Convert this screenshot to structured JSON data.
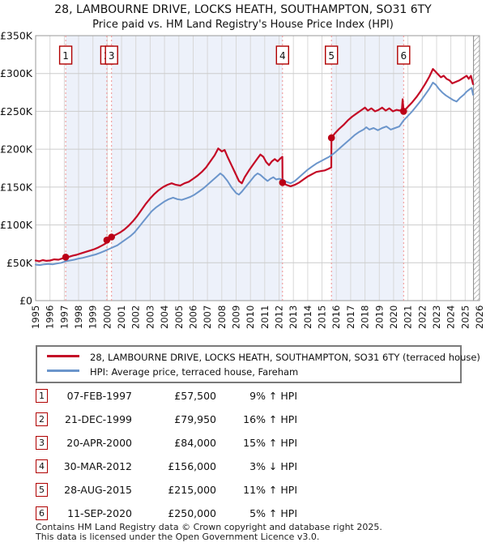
{
  "header": {
    "title": "28, LAMBOURNE DRIVE, LOCKS HEATH, SOUTHAMPTON, SO31 6TY",
    "subtitle": "Price paid vs. HM Land Registry's House Price Index (HPI)"
  },
  "chart_data": {
    "type": "line",
    "title": "Price paid vs. HPI",
    "x_axis": {
      "tick_years": [
        1995,
        1996,
        1997,
        1998,
        1999,
        2000,
        2001,
        2002,
        2003,
        2004,
        2005,
        2006,
        2007,
        2008,
        2009,
        2010,
        2011,
        2012,
        2013,
        2014,
        2015,
        2016,
        2017,
        2018,
        2019,
        2020,
        2021,
        2022,
        2023,
        2024,
        2025,
        2026
      ],
      "range": [
        1995,
        2026
      ]
    },
    "y_axis": {
      "range_k": [
        0,
        350
      ],
      "ticks": [
        {
          "value": 0,
          "label": "£0"
        },
        {
          "value": 50,
          "label": "£50K"
        },
        {
          "value": 100,
          "label": "£100K"
        },
        {
          "value": 150,
          "label": "£150K"
        },
        {
          "value": 200,
          "label": "£200K"
        },
        {
          "value": 250,
          "label": "£250K"
        },
        {
          "value": 300,
          "label": "£300K"
        },
        {
          "value": 350,
          "label": "£350K"
        }
      ]
    },
    "hatch_start_year": 2025.58,
    "ownership_bands": [
      [
        1997.1,
        1999.97
      ],
      [
        2000.3,
        2012.24
      ],
      [
        2015.66,
        2020.7
      ]
    ],
    "sale_markers": [
      {
        "n": "1",
        "year": 1997.1,
        "price_k": 57.5
      },
      {
        "n": "2",
        "year": 1999.97,
        "price_k": 79.95
      },
      {
        "n": "3",
        "year": 2000.3,
        "price_k": 84
      },
      {
        "n": "4",
        "year": 2012.24,
        "price_k": 156
      },
      {
        "n": "5",
        "year": 2015.66,
        "price_k": 215
      },
      {
        "n": "6",
        "year": 2020.7,
        "price_k": 250
      }
    ],
    "colors": {
      "price_line": "#c40a26",
      "hpi_line": "#6b95cb",
      "dot": "#bb0016",
      "box_border": "#b00000",
      "band": "#edf1fa",
      "grid_v": "#d8d8d8",
      "grid_h": "#cccccc",
      "frame": "#999999",
      "sale_dash": "#ef8f8f",
      "hatch": "#bbbbbb"
    },
    "series": [
      {
        "id": "price-paid",
        "name": "28, LAMBOURNE DRIVE (terraced house)",
        "color": "#c40a26",
        "width": 2.2,
        "points": [
          [
            1995.0,
            53
          ],
          [
            1995.25,
            52
          ],
          [
            1995.5,
            53.5
          ],
          [
            1995.75,
            52.5
          ],
          [
            1996.0,
            53
          ],
          [
            1996.3,
            54.5
          ],
          [
            1996.6,
            54
          ],
          [
            1996.9,
            56
          ],
          [
            1997.1,
            57.5
          ],
          [
            1997.35,
            58
          ],
          [
            1997.6,
            59.5
          ],
          [
            1997.85,
            60.5
          ],
          [
            1998.1,
            62
          ],
          [
            1998.35,
            63.5
          ],
          [
            1998.6,
            65
          ],
          [
            1998.85,
            66.5
          ],
          [
            1999.1,
            68
          ],
          [
            1999.35,
            70
          ],
          [
            1999.6,
            72.5
          ],
          [
            1999.85,
            75
          ],
          [
            1999.96,
            76.5
          ],
          [
            1999.97,
            80
          ],
          [
            2000.29,
            81.5
          ],
          [
            2000.3,
            84
          ],
          [
            2000.6,
            87
          ],
          [
            2000.9,
            90
          ],
          [
            2001.2,
            94
          ],
          [
            2001.5,
            99
          ],
          [
            2001.8,
            105
          ],
          [
            2002.1,
            112
          ],
          [
            2002.4,
            120
          ],
          [
            2002.7,
            128
          ],
          [
            2003.0,
            135
          ],
          [
            2003.3,
            141
          ],
          [
            2003.6,
            146
          ],
          [
            2003.9,
            150
          ],
          [
            2004.2,
            153
          ],
          [
            2004.5,
            155
          ],
          [
            2004.8,
            153
          ],
          [
            2005.1,
            152
          ],
          [
            2005.4,
            155
          ],
          [
            2005.7,
            157
          ],
          [
            2006.0,
            161
          ],
          [
            2006.3,
            165
          ],
          [
            2006.6,
            170
          ],
          [
            2006.9,
            176
          ],
          [
            2007.2,
            184
          ],
          [
            2007.5,
            192
          ],
          [
            2007.75,
            201
          ],
          [
            2008.0,
            197
          ],
          [
            2008.2,
            199
          ],
          [
            2008.4,
            190
          ],
          [
            2008.7,
            178
          ],
          [
            2009.0,
            166
          ],
          [
            2009.2,
            158
          ],
          [
            2009.4,
            155
          ],
          [
            2009.6,
            163
          ],
          [
            2009.9,
            172
          ],
          [
            2010.2,
            180
          ],
          [
            2010.5,
            188
          ],
          [
            2010.7,
            193
          ],
          [
            2010.9,
            190
          ],
          [
            2011.1,
            183
          ],
          [
            2011.3,
            179
          ],
          [
            2011.5,
            184
          ],
          [
            2011.7,
            187
          ],
          [
            2011.9,
            184
          ],
          [
            2012.1,
            188
          ],
          [
            2012.23,
            190
          ],
          [
            2012.24,
            156
          ],
          [
            2012.5,
            153
          ],
          [
            2012.8,
            151
          ],
          [
            2013.1,
            153
          ],
          [
            2013.4,
            156
          ],
          [
            2013.7,
            160
          ],
          [
            2014.0,
            164
          ],
          [
            2014.3,
            167
          ],
          [
            2014.6,
            170
          ],
          [
            2014.9,
            171
          ],
          [
            2015.2,
            172
          ],
          [
            2015.45,
            174
          ],
          [
            2015.65,
            176
          ],
          [
            2015.66,
            215
          ],
          [
            2015.9,
            221
          ],
          [
            2016.2,
            227
          ],
          [
            2016.5,
            232
          ],
          [
            2016.8,
            238
          ],
          [
            2017.1,
            243
          ],
          [
            2017.4,
            247
          ],
          [
            2017.7,
            251
          ],
          [
            2018.0,
            255
          ],
          [
            2018.2,
            251
          ],
          [
            2018.45,
            254
          ],
          [
            2018.7,
            250
          ],
          [
            2018.95,
            252
          ],
          [
            2019.2,
            255
          ],
          [
            2019.45,
            251
          ],
          [
            2019.7,
            254
          ],
          [
            2019.95,
            250
          ],
          [
            2020.2,
            252
          ],
          [
            2020.45,
            251
          ],
          [
            2020.58,
            253
          ],
          [
            2020.63,
            266
          ],
          [
            2020.7,
            250
          ],
          [
            2021.0,
            256
          ],
          [
            2021.3,
            262
          ],
          [
            2021.6,
            269
          ],
          [
            2021.9,
            277
          ],
          [
            2022.2,
            286
          ],
          [
            2022.5,
            296
          ],
          [
            2022.75,
            306
          ],
          [
            2022.9,
            303
          ],
          [
            2023.1,
            299
          ],
          [
            2023.3,
            295
          ],
          [
            2023.5,
            297
          ],
          [
            2023.7,
            293
          ],
          [
            2023.9,
            291
          ],
          [
            2024.1,
            287
          ],
          [
            2024.35,
            289
          ],
          [
            2024.6,
            291
          ],
          [
            2024.85,
            294
          ],
          [
            2025.1,
            297
          ],
          [
            2025.25,
            293
          ],
          [
            2025.4,
            297
          ],
          [
            2025.55,
            286
          ]
        ]
      },
      {
        "id": "hpi",
        "name": "HPI: Average price, terraced house, Fareham",
        "color": "#6b95cb",
        "width": 2,
        "points": [
          [
            1995.0,
            47.5
          ],
          [
            1995.3,
            47
          ],
          [
            1995.6,
            48
          ],
          [
            1995.9,
            48.5
          ],
          [
            1996.2,
            48
          ],
          [
            1996.5,
            49
          ],
          [
            1996.8,
            50
          ],
          [
            1997.1,
            52
          ],
          [
            1997.4,
            53
          ],
          [
            1997.7,
            54
          ],
          [
            1998.0,
            55.5
          ],
          [
            1998.3,
            56.5
          ],
          [
            1998.6,
            58
          ],
          [
            1998.9,
            59.5
          ],
          [
            1999.2,
            61
          ],
          [
            1999.5,
            63
          ],
          [
            1999.8,
            65.5
          ],
          [
            2000.1,
            68
          ],
          [
            2000.4,
            70.5
          ],
          [
            2000.7,
            73
          ],
          [
            2001.0,
            77
          ],
          [
            2001.3,
            81
          ],
          [
            2001.6,
            85
          ],
          [
            2001.9,
            90
          ],
          [
            2002.2,
            97
          ],
          [
            2002.5,
            104
          ],
          [
            2002.8,
            111
          ],
          [
            2003.1,
            118
          ],
          [
            2003.4,
            123
          ],
          [
            2003.7,
            127
          ],
          [
            2004.0,
            131
          ],
          [
            2004.3,
            134
          ],
          [
            2004.6,
            136
          ],
          [
            2004.9,
            134
          ],
          [
            2005.2,
            133
          ],
          [
            2005.5,
            135
          ],
          [
            2005.8,
            137
          ],
          [
            2006.1,
            140
          ],
          [
            2006.4,
            144
          ],
          [
            2006.7,
            148
          ],
          [
            2007.0,
            153
          ],
          [
            2007.3,
            158
          ],
          [
            2007.6,
            163
          ],
          [
            2007.9,
            168
          ],
          [
            2008.1,
            165
          ],
          [
            2008.4,
            158
          ],
          [
            2008.7,
            149
          ],
          [
            2009.0,
            142
          ],
          [
            2009.2,
            140
          ],
          [
            2009.4,
            144
          ],
          [
            2009.7,
            151
          ],
          [
            2010.0,
            158
          ],
          [
            2010.3,
            165
          ],
          [
            2010.5,
            168
          ],
          [
            2010.7,
            166
          ],
          [
            2011.0,
            161
          ],
          [
            2011.2,
            158
          ],
          [
            2011.4,
            161
          ],
          [
            2011.6,
            163
          ],
          [
            2011.8,
            160
          ],
          [
            2012.0,
            161
          ],
          [
            2012.2,
            160
          ],
          [
            2012.5,
            157
          ],
          [
            2012.8,
            155
          ],
          [
            2013.1,
            158
          ],
          [
            2013.4,
            163
          ],
          [
            2013.7,
            168
          ],
          [
            2014.0,
            173
          ],
          [
            2014.3,
            177
          ],
          [
            2014.6,
            181
          ],
          [
            2014.9,
            184
          ],
          [
            2015.2,
            187
          ],
          [
            2015.5,
            190
          ],
          [
            2015.8,
            194
          ],
          [
            2016.1,
            199
          ],
          [
            2016.4,
            204
          ],
          [
            2016.7,
            209
          ],
          [
            2017.0,
            214
          ],
          [
            2017.3,
            219
          ],
          [
            2017.6,
            223
          ],
          [
            2017.9,
            226
          ],
          [
            2018.1,
            229
          ],
          [
            2018.3,
            226
          ],
          [
            2018.6,
            228
          ],
          [
            2018.9,
            225
          ],
          [
            2019.2,
            228
          ],
          [
            2019.5,
            230
          ],
          [
            2019.8,
            226
          ],
          [
            2020.1,
            228
          ],
          [
            2020.4,
            230
          ],
          [
            2020.7,
            238
          ],
          [
            2021.0,
            244
          ],
          [
            2021.3,
            250
          ],
          [
            2021.6,
            257
          ],
          [
            2021.9,
            264
          ],
          [
            2022.2,
            272
          ],
          [
            2022.5,
            280
          ],
          [
            2022.75,
            288
          ],
          [
            2022.95,
            285
          ],
          [
            2023.15,
            280
          ],
          [
            2023.4,
            275
          ],
          [
            2023.65,
            271
          ],
          [
            2023.9,
            268
          ],
          [
            2024.15,
            265
          ],
          [
            2024.4,
            263
          ],
          [
            2024.65,
            268
          ],
          [
            2024.9,
            272
          ],
          [
            2025.1,
            276
          ],
          [
            2025.3,
            279
          ],
          [
            2025.45,
            281
          ],
          [
            2025.55,
            272
          ]
        ]
      }
    ]
  },
  "legend": {
    "items": [
      {
        "label": "28, LAMBOURNE DRIVE, LOCKS HEATH, SOUTHAMPTON, SO31 6TY (terraced house)",
        "color": "#c40a26"
      },
      {
        "label": "HPI: Average price, terraced house, Fareham",
        "color": "#6b95cb"
      }
    ]
  },
  "transactions": {
    "rows": [
      {
        "num": "1",
        "date": "07-FEB-1997",
        "price": "£57,500",
        "hpi_pct": "9%",
        "hpi_dir": "↑",
        "hpi_label": "HPI"
      },
      {
        "num": "2",
        "date": "21-DEC-1999",
        "price": "£79,950",
        "hpi_pct": "16%",
        "hpi_dir": "↑",
        "hpi_label": "HPI"
      },
      {
        "num": "3",
        "date": "20-APR-2000",
        "price": "£84,000",
        "hpi_pct": "15%",
        "hpi_dir": "↑",
        "hpi_label": "HPI"
      },
      {
        "num": "4",
        "date": "30-MAR-2012",
        "price": "£156,000",
        "hpi_pct": "3%",
        "hpi_dir": "↓",
        "hpi_label": "HPI"
      },
      {
        "num": "5",
        "date": "28-AUG-2015",
        "price": "£215,000",
        "hpi_pct": "11%",
        "hpi_dir": "↑",
        "hpi_label": "HPI"
      },
      {
        "num": "6",
        "date": "11-SEP-2020",
        "price": "£250,000",
        "hpi_pct": "5%",
        "hpi_dir": "↑",
        "hpi_label": "HPI"
      }
    ]
  },
  "footer": {
    "line1": "Contains HM Land Registry data © Crown copyright and database right 2025.",
    "line2": "This data is licensed under the Open Government Licence v3.0."
  }
}
